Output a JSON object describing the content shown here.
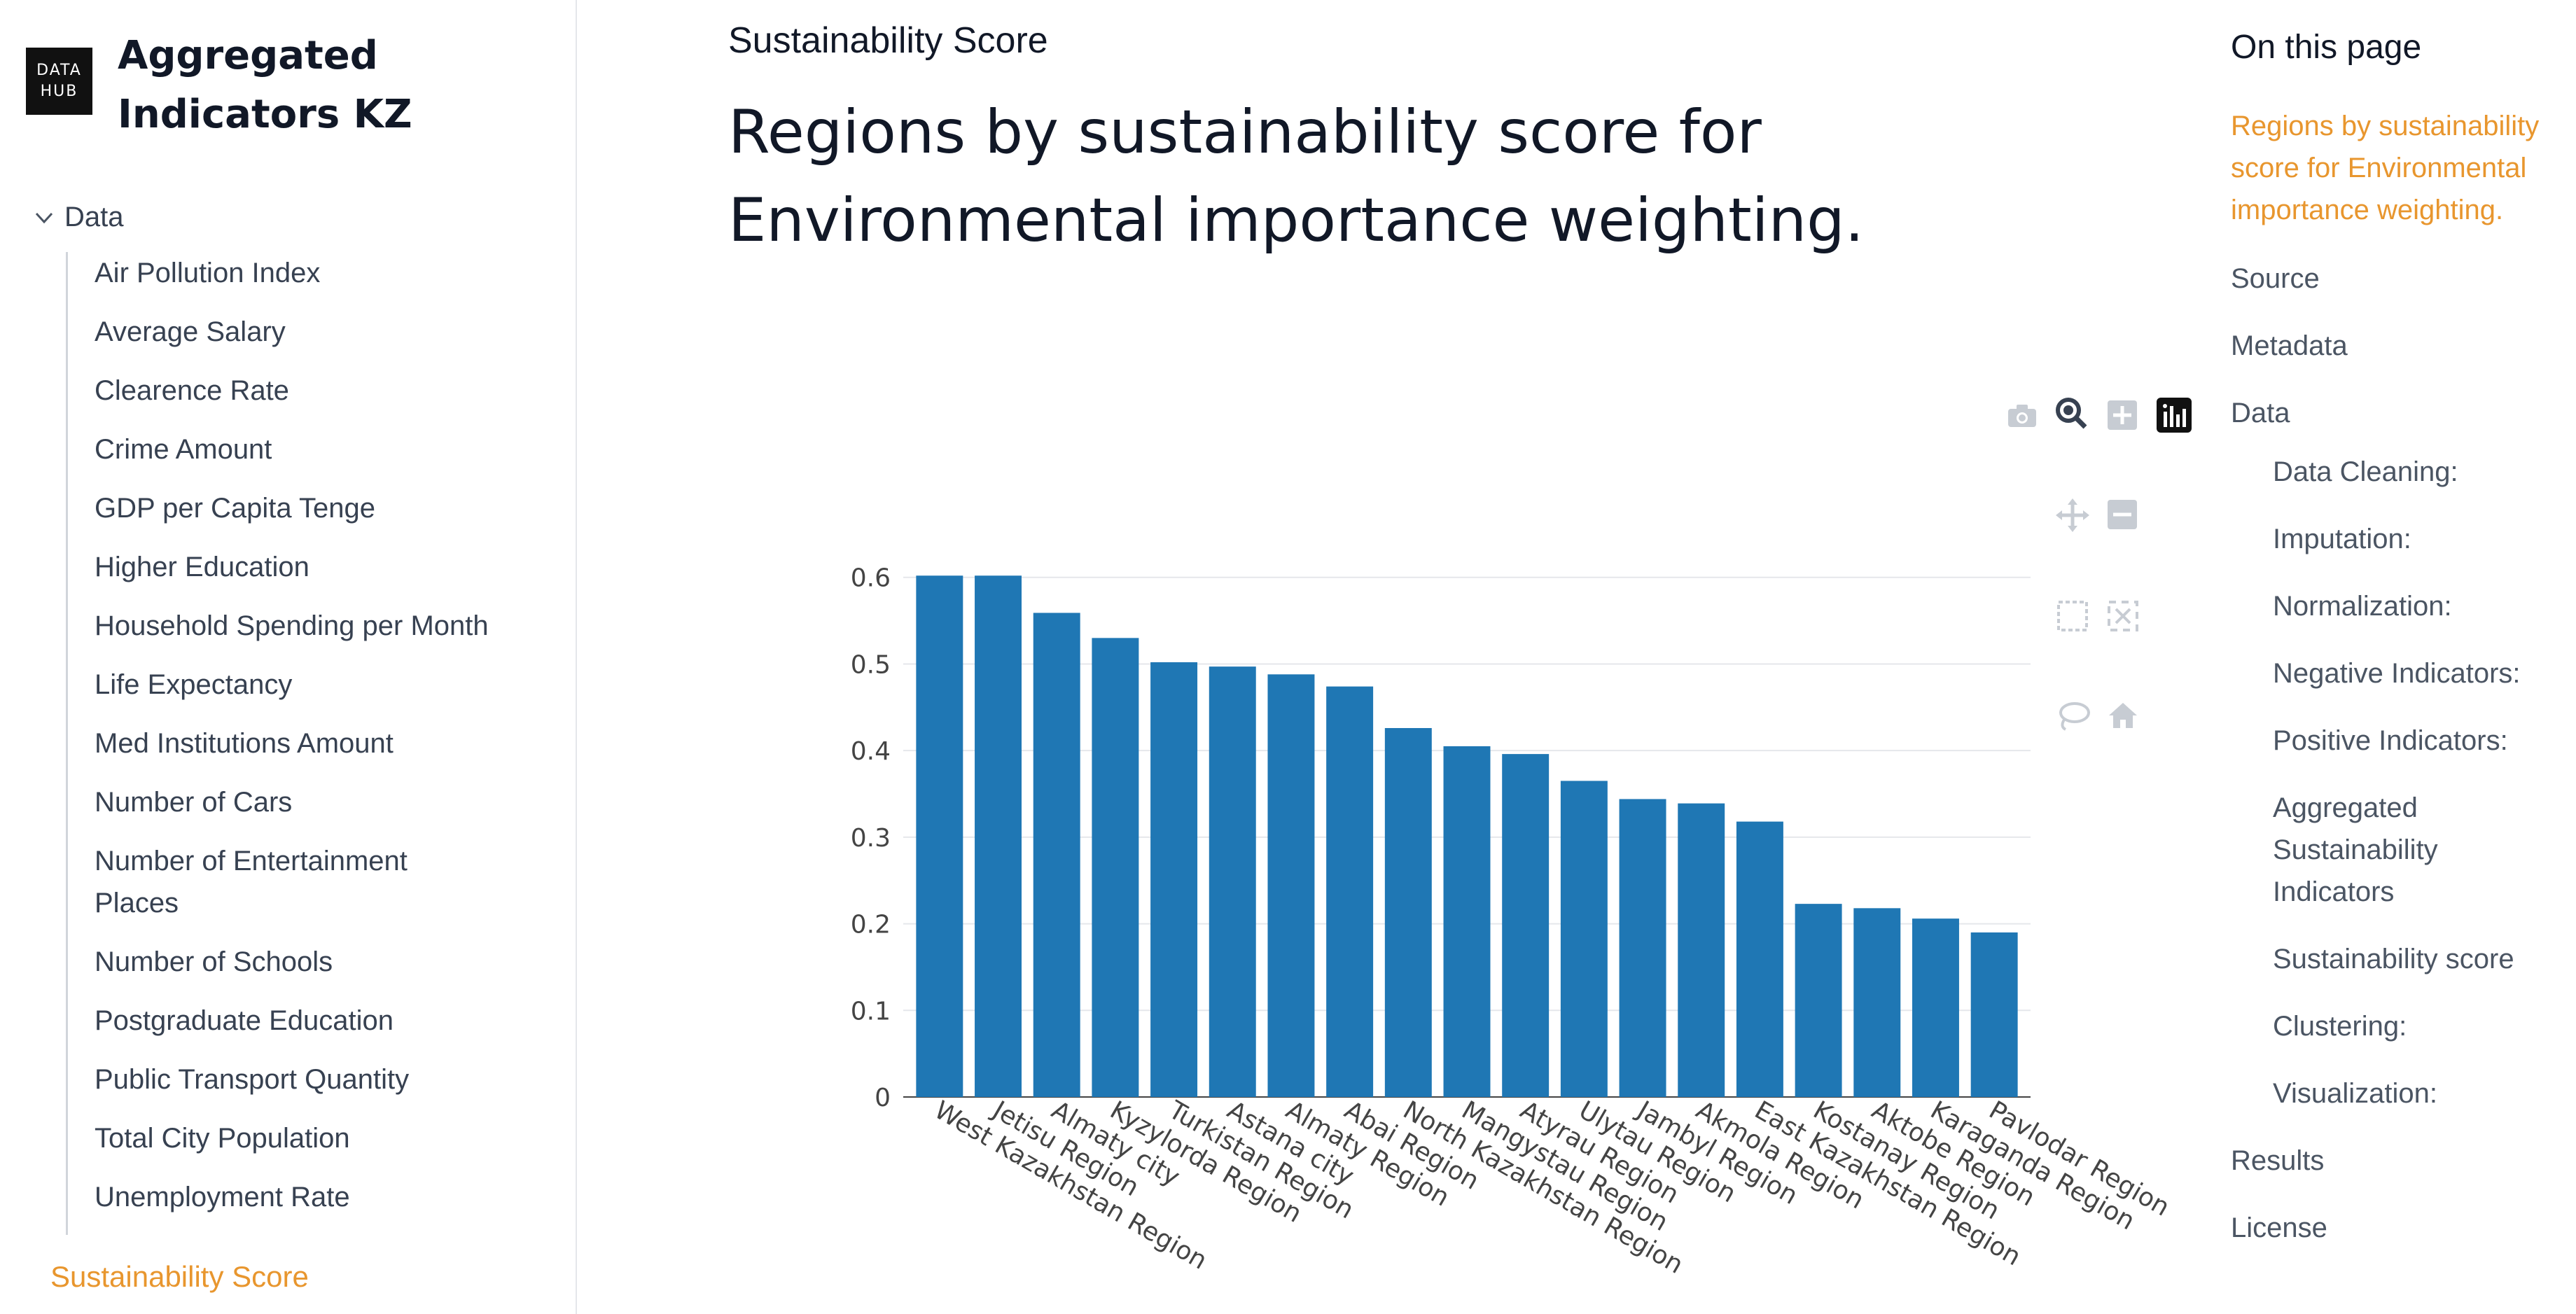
{
  "site": {
    "logo_line1": "DATA",
    "logo_line2": "HUB",
    "title": "Aggregated Indicators KZ"
  },
  "sidebar": {
    "group_label": "Data",
    "items": [
      "Air Pollution Index",
      "Average Salary",
      "Clearence Rate",
      "Crime Amount",
      "GDP per Capita Tenge",
      "Higher Education",
      "Household Spending per Month",
      "Life Expectancy",
      "Med Institutions Amount",
      "Number of Cars",
      "Number of Entertainment Places",
      "Number of Schools",
      "Postgraduate Education",
      "Public Transport Quantity",
      "Total City Population",
      "Unemployment Rate"
    ],
    "active_item": "Sustainability Score"
  },
  "main": {
    "section_title": "Sustainability Score",
    "heading": "Regions by sustainability score for Environmental importance weighting."
  },
  "toc": {
    "heading": "On this page",
    "links": [
      {
        "label": "Regions by sustainability score for Environmental importance weighting.",
        "active": true
      },
      {
        "label": "Source"
      },
      {
        "label": "Metadata"
      },
      {
        "label": "Data"
      },
      {
        "label": "Data Cleaning:"
      },
      {
        "label": "Imputation:"
      },
      {
        "label": "Normalization:"
      },
      {
        "label": "Negative Indicators:"
      },
      {
        "label": "Positive Indicators:"
      },
      {
        "label": "Aggregated Sustainability Indicators"
      },
      {
        "label": "Sustainability score"
      },
      {
        "label": "Clustering:"
      },
      {
        "label": "Visualization:"
      },
      {
        "label": "Results"
      },
      {
        "label": "License"
      }
    ]
  },
  "modebar": {
    "icons": [
      "camera-icon",
      "zoom-icon",
      "zoom-in-icon",
      "plotly-logo-icon",
      "pan-icon",
      "zoom-out-icon",
      "box-select-icon",
      "autoscale-icon",
      "lasso-icon",
      "reset-axes-icon"
    ]
  },
  "colors": {
    "bar": "#1f77b4",
    "accent": "#e8962e",
    "grid": "#e5e7eb"
  },
  "chart_data": {
    "type": "bar",
    "title": "",
    "xlabel": "",
    "ylabel": "",
    "ylim": [
      0,
      0.62
    ],
    "yticks": [
      0,
      0.1,
      0.2,
      0.3,
      0.4,
      0.5,
      0.6
    ],
    "ytick_labels": [
      "0",
      "0.1",
      "0.2",
      "0.3",
      "0.4",
      "0.5",
      "0.6"
    ],
    "categories": [
      "West Kazakhstan Region",
      "Jetisu Region",
      "Almaty city",
      "Kyzylorda Region",
      "Turkistan Region",
      "Astana city",
      "Almaty Region",
      "Abai Region",
      "North Kazakhstan Region",
      "Mangystau Region",
      "Atyrau Region",
      "Ulytau Region",
      "Jambyl Region",
      "Akmola Region",
      "East Kazakhstan Region",
      "Kostanay Region",
      "Aktobe Region",
      "Karaganda Region",
      "Pavlodar Region"
    ],
    "values": [
      0.602,
      0.602,
      0.559,
      0.53,
      0.502,
      0.497,
      0.488,
      0.474,
      0.426,
      0.405,
      0.396,
      0.365,
      0.344,
      0.339,
      0.318,
      0.223,
      0.218,
      0.206,
      0.19
    ],
    "grid": true,
    "legend": "none"
  }
}
